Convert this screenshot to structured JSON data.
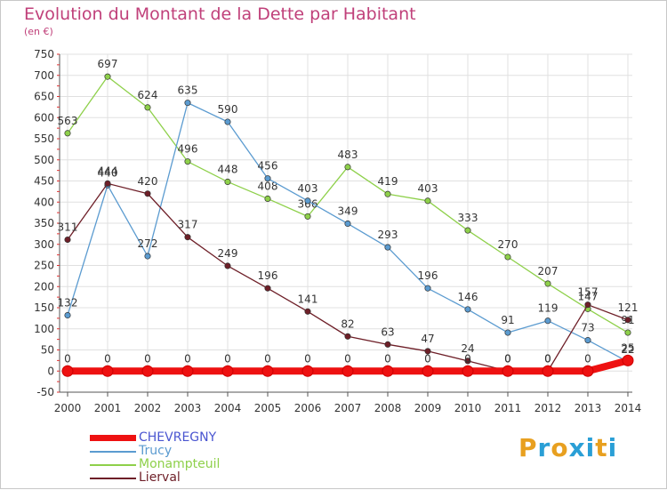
{
  "header": {
    "title": "Evolution du Montant de la Dette par Habitant",
    "unit": "(en €)"
  },
  "logo": {
    "text": "Proxiti",
    "letter_colors": [
      "#e8a020",
      "#2a9fd6",
      "#e8a020",
      "#2a9fd6",
      "#2a9fd6",
      "#e8a020",
      "#2a9fd6"
    ]
  },
  "colors": {
    "title": "#c0407a",
    "tick_text": "#333333",
    "grid": "#e0e0e0",
    "axis": "#555555",
    "left_axis_ticks": "#e03030"
  },
  "chart_data": {
    "type": "line",
    "title": "Evolution du Montant de la Dette par Habitant",
    "subtitle": "(en €)",
    "xlabel": "",
    "ylabel": "",
    "x": [
      "2000",
      "2001",
      "2002",
      "2003",
      "2004",
      "2005",
      "2006",
      "2007",
      "2008",
      "2009",
      "2010",
      "2011",
      "2012",
      "2013",
      "2014"
    ],
    "ylim": [
      -50,
      750
    ],
    "yticks": [
      -50,
      0,
      50,
      100,
      150,
      200,
      250,
      300,
      350,
      400,
      450,
      500,
      550,
      600,
      650,
      700,
      750
    ],
    "grid": true,
    "legend_position": "bottom-left",
    "series": [
      {
        "name": "Monampteuil",
        "color": "#8ed04a",
        "values": [
          563,
          697,
          624,
          496,
          448,
          408,
          366,
          483,
          419,
          403,
          333,
          270,
          207,
          147,
          91
        ]
      },
      {
        "name": "Trucy",
        "color": "#5b9bd0",
        "values": [
          132,
          440,
          272,
          635,
          590,
          456,
          403,
          349,
          293,
          196,
          146,
          91,
          119,
          73,
          22
        ]
      },
      {
        "name": "Lierval",
        "color": "#6e1f28",
        "values": [
          311,
          444,
          420,
          317,
          249,
          196,
          141,
          82,
          63,
          47,
          24,
          0,
          0,
          157,
          121
        ]
      },
      {
        "name": "CHEVREGNY",
        "color": "#ee1111",
        "values": [
          0,
          0,
          0,
          0,
          0,
          0,
          0,
          0,
          0,
          0,
          0,
          0,
          0,
          0,
          25
        ]
      }
    ],
    "legend": [
      "CHEVREGNY",
      "Trucy",
      "Monampteuil",
      "Lierval"
    ]
  }
}
